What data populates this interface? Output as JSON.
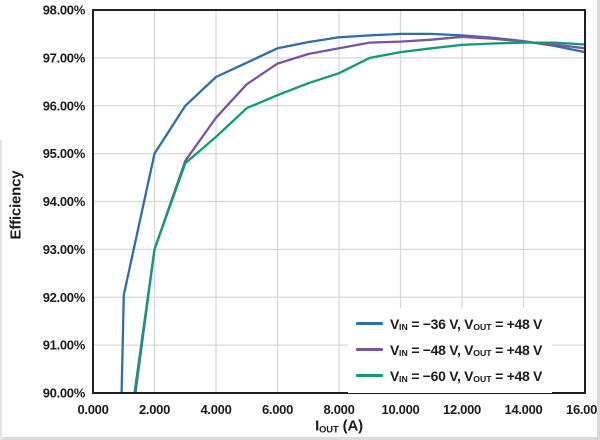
{
  "page": {
    "background": "#ffffff",
    "edge_color": "#dadada"
  },
  "chart_data": {
    "type": "line",
    "title": "",
    "ylabel": "Efficiency",
    "xlabel": {
      "main": "I",
      "sub": "OUT",
      "unit": " (A)"
    },
    "xlim": [
      0,
      16
    ],
    "ylim": [
      90,
      98
    ],
    "x_ticks": [
      0,
      2,
      4,
      6,
      8,
      10,
      12,
      14,
      16
    ],
    "x_tick_labels": [
      "0.000",
      "2.000",
      "4.000",
      "6.000",
      "8.000",
      "10.000",
      "12.000",
      "14.000",
      "16.000"
    ],
    "y_ticks": [
      90,
      91,
      92,
      93,
      94,
      95,
      96,
      97,
      98
    ],
    "y_tick_labels": [
      "90.00%",
      "91.00%",
      "92.00%",
      "93.00%",
      "94.00%",
      "95.00%",
      "96.00%",
      "97.00%",
      "98.00%"
    ],
    "grid": true,
    "legend_position": "bottom-right",
    "colors": {
      "grid": "#d8d8d8",
      "border": "#212121",
      "text": "#1b1b1b"
    },
    "legend": {
      "v": "V",
      "in_sub": "IN",
      "out_sub": "OUT",
      "eq": " = ",
      "sep": ", "
    },
    "series": [
      {
        "name": "vin-36",
        "color": "#2e6eaa",
        "vin": "−36 V",
        "vout": "+48 V",
        "points": [
          [
            0.93,
            90.0
          ],
          [
            1.0,
            92.05
          ],
          [
            2.0,
            95.0
          ],
          [
            3.0,
            96.0
          ],
          [
            4.0,
            96.6
          ],
          [
            5.0,
            96.9
          ],
          [
            6.0,
            97.2
          ],
          [
            7.0,
            97.33
          ],
          [
            8.0,
            97.43
          ],
          [
            9.0,
            97.47
          ],
          [
            10.0,
            97.5
          ],
          [
            11.0,
            97.5
          ],
          [
            12.0,
            97.47
          ],
          [
            13.0,
            97.42
          ],
          [
            14.0,
            97.35
          ],
          [
            15.0,
            97.25
          ],
          [
            16.0,
            97.12
          ]
        ]
      },
      {
        "name": "vin-48",
        "color": "#7a54a2",
        "vin": "−48 V",
        "vout": "+48 V",
        "points": [
          [
            1.38,
            90.0
          ],
          [
            2.0,
            93.0
          ],
          [
            3.0,
            94.85
          ],
          [
            4.0,
            95.75
          ],
          [
            5.0,
            96.45
          ],
          [
            6.0,
            96.88
          ],
          [
            7.0,
            97.08
          ],
          [
            8.0,
            97.2
          ],
          [
            9.0,
            97.32
          ],
          [
            10.0,
            97.34
          ],
          [
            11.0,
            97.38
          ],
          [
            12.0,
            97.44
          ],
          [
            13.0,
            97.4
          ],
          [
            14.0,
            97.34
          ],
          [
            15.0,
            97.28
          ],
          [
            16.0,
            97.2
          ]
        ]
      },
      {
        "name": "vin-60",
        "color": "#0f9c73",
        "vin": "−60 V",
        "vout": "+48 V",
        "points": [
          [
            1.35,
            90.0
          ],
          [
            2.0,
            93.0
          ],
          [
            3.0,
            94.8
          ],
          [
            4.0,
            95.35
          ],
          [
            5.0,
            95.95
          ],
          [
            6.0,
            96.22
          ],
          [
            7.0,
            96.47
          ],
          [
            8.0,
            96.68
          ],
          [
            9.0,
            97.0
          ],
          [
            10.0,
            97.12
          ],
          [
            11.0,
            97.2
          ],
          [
            12.0,
            97.27
          ],
          [
            13.0,
            97.3
          ],
          [
            14.0,
            97.32
          ],
          [
            15.0,
            97.32
          ],
          [
            16.0,
            97.28
          ]
        ]
      }
    ]
  }
}
